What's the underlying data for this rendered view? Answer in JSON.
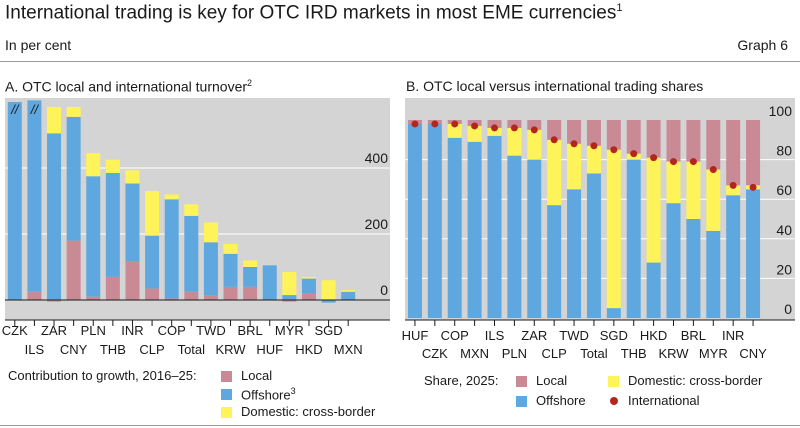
{
  "header": {
    "title": "International trading is key for OTC IRD markets in most EME currencies",
    "title_footnote": "1",
    "subtitle": "In per cent",
    "graph_label": "Graph 6"
  },
  "colors": {
    "local": "#c98a96",
    "offshore": "#5fa8df",
    "domestic": "#fff35a",
    "international": "#b3261e",
    "background": "#d4d4d4",
    "grid": "#ffffff"
  },
  "chart_data": [
    {
      "id": "A",
      "type": "bar",
      "stacked": true,
      "title": "A. OTC local and international turnover",
      "title_footnote": "2",
      "categories": [
        "CZK",
        "ILS",
        "ZAR",
        "CNY",
        "PLN",
        "THB",
        "INR",
        "CLP",
        "COP",
        "Total",
        "TWD",
        "KRW",
        "BRL",
        "HUF",
        "MYR",
        "HKD",
        "SGD",
        "MXN"
      ],
      "series": [
        {
          "name": "Local",
          "values": [
            0,
            25,
            -5,
            180,
            10,
            70,
            118,
            35,
            5,
            25,
            15,
            40,
            40,
            0,
            -5,
            20,
            0,
            0
          ]
        },
        {
          "name": "Offshore",
          "footnote": "3",
          "values": [
            600,
            580,
            505,
            375,
            365,
            315,
            235,
            160,
            300,
            230,
            160,
            100,
            60,
            105,
            15,
            45,
            -8,
            25
          ]
        },
        {
          "name": "Domestic: cross-border",
          "values": [
            0,
            0,
            80,
            30,
            70,
            40,
            40,
            135,
            15,
            35,
            60,
            30,
            20,
            0,
            70,
            5,
            60,
            5
          ]
        }
      ],
      "truncated": [
        "CZK",
        "ILS"
      ],
      "truncation_mark": "//",
      "y_ticks": [
        0,
        200,
        400
      ],
      "ylim": [
        -50,
        600
      ],
      "legend_title": "Contribution to growth, 2016–25:",
      "legend": [
        "Local",
        "Offshore",
        "Domestic: cross-border"
      ],
      "legend_footnotes": [
        "",
        "3",
        ""
      ]
    },
    {
      "id": "B",
      "type": "bar",
      "stacked": true,
      "title": "B. OTC local versus international trading shares",
      "categories": [
        "HUF",
        "CZK",
        "COP",
        "MXN",
        "ILS",
        "PLN",
        "ZAR",
        "CLP",
        "TWD",
        "Total",
        "SGD",
        "THB",
        "HKD",
        "KRW",
        "BRL",
        "MYR",
        "INR",
        "CNY"
      ],
      "series": [
        {
          "name": "Offshore",
          "values": [
            98,
            98,
            91,
            89,
            92,
            82,
            80,
            57,
            65,
            73,
            5,
            80,
            28,
            58,
            50,
            44,
            62,
            65
          ]
        },
        {
          "name": "Domestic: cross-border",
          "values": [
            0,
            0,
            7,
            8,
            4,
            14,
            15,
            33,
            23,
            14,
            80,
            3,
            53,
            21,
            29,
            31,
            5,
            2
          ]
        },
        {
          "name": "Local",
          "values": [
            2,
            2,
            2,
            3,
            4,
            4,
            5,
            10,
            12,
            13,
            15,
            17,
            19,
            21,
            21,
            25,
            33,
            33
          ]
        }
      ],
      "international": [
        98,
        98,
        98,
        97,
        96,
        96,
        95,
        90,
        88,
        87,
        85,
        83,
        81,
        79,
        79,
        75,
        67,
        66
      ],
      "y_ticks": [
        0,
        20,
        40,
        60,
        80,
        100
      ],
      "ylim": [
        0,
        100
      ],
      "legend_title": "Share, 2025:",
      "legend": [
        "Local",
        "Offshore",
        "Domestic: cross-border",
        "International"
      ]
    }
  ]
}
